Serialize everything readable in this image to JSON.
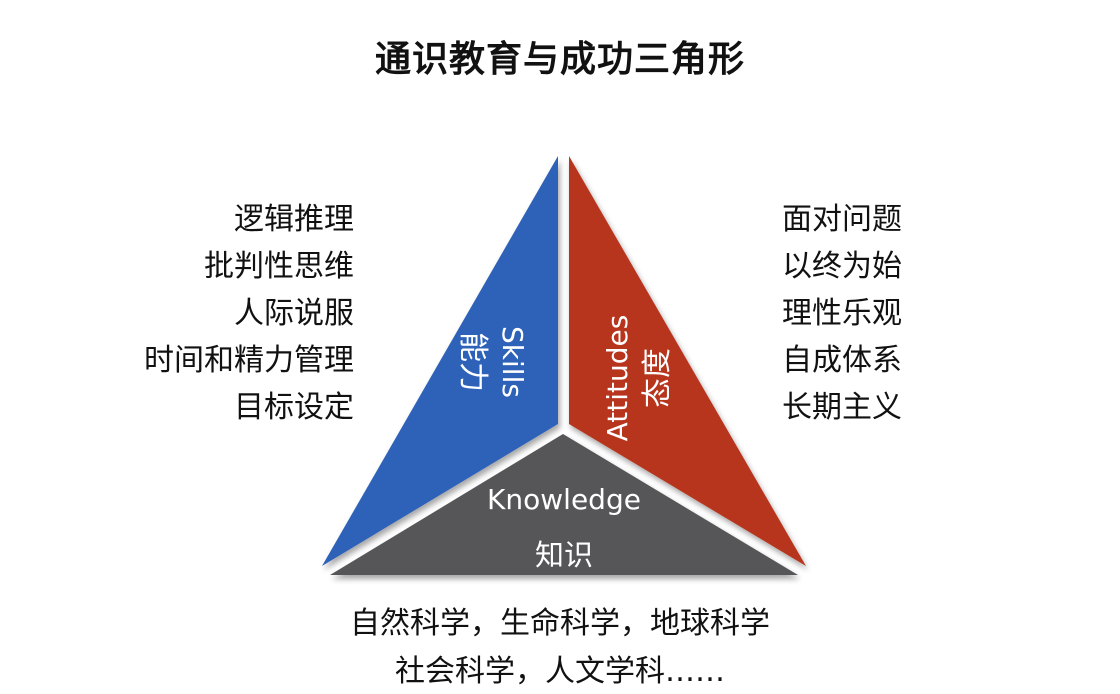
{
  "title": "通识教育与成功三角形",
  "skills": {
    "label_en": "Skills",
    "label_zh": "能力",
    "color": "#2f62b8",
    "items": [
      "逻辑推理",
      "批判性思维",
      "人际说服",
      "时间和精力管理",
      "目标设定"
    ]
  },
  "attitudes": {
    "label_en": "Attitudes",
    "label_zh": "态度",
    "color": "#b7351f",
    "items": [
      "面对问题",
      "以终为始",
      "理性乐观",
      "自成体系",
      "长期主义"
    ]
  },
  "knowledge": {
    "label_en": "Knowledge",
    "label_zh": "知识",
    "color": "#565759",
    "lines": [
      "自然科学，生命科学，地球科学",
      "社会科学，人文学科……"
    ]
  }
}
